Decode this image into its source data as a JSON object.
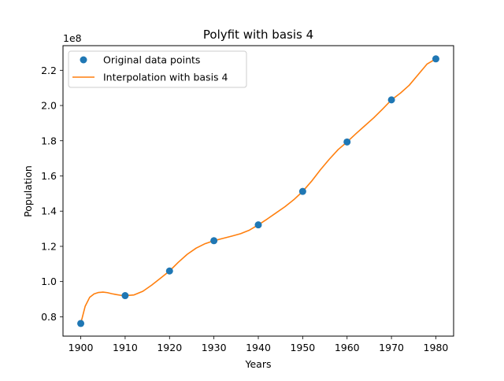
{
  "chart_data": {
    "type": "line",
    "title": "Polyfit with basis 4",
    "xlabel": "Years",
    "ylabel": "Population",
    "y_offset_label": "1e8",
    "xlim": [
      1896,
      1984
    ],
    "ylim": [
      0.69,
      2.34
    ],
    "xticks": [
      1900,
      1910,
      1920,
      1930,
      1940,
      1950,
      1960,
      1970,
      1980
    ],
    "xtick_labels": [
      "1900",
      "1910",
      "1920",
      "1930",
      "1940",
      "1950",
      "1960",
      "1970",
      "1980"
    ],
    "yticks": [
      0.8,
      1.0,
      1.2,
      1.4,
      1.6,
      1.8,
      2.0,
      2.2
    ],
    "ytick_labels": [
      "0.8",
      "1.0",
      "1.2",
      "1.4",
      "1.6",
      "1.8",
      "2.0",
      "2.2"
    ],
    "legend_position": "upper-left",
    "grid": false,
    "colors": {
      "points": "#1f77b4",
      "curve": "#ff7f0e"
    },
    "series": [
      {
        "name": "Original data points",
        "kind": "scatter",
        "x": [
          1900,
          1910,
          1920,
          1930,
          1940,
          1950,
          1960,
          1970,
          1980
        ],
        "y": [
          0.762,
          0.92,
          1.06,
          1.232,
          1.322,
          1.512,
          1.793,
          2.032,
          2.265
        ]
      },
      {
        "name": "Interpolation with basis 4",
        "kind": "line",
        "x": [
          1900,
          1901,
          1902,
          1903,
          1904,
          1905,
          1906,
          1907,
          1908,
          1909,
          1910,
          1912,
          1914,
          1916,
          1918,
          1920,
          1922,
          1924,
          1926,
          1928,
          1930,
          1932,
          1934,
          1936,
          1938,
          1940,
          1942,
          1944,
          1946,
          1948,
          1950,
          1952,
          1954,
          1956,
          1958,
          1960,
          1962,
          1964,
          1966,
          1968,
          1970,
          1972,
          1974,
          1976,
          1978,
          1980
        ],
        "y": [
          0.762,
          0.86,
          0.91,
          0.93,
          0.938,
          0.94,
          0.937,
          0.931,
          0.926,
          0.922,
          0.92,
          0.924,
          0.945,
          0.98,
          1.02,
          1.06,
          1.11,
          1.155,
          1.19,
          1.215,
          1.232,
          1.245,
          1.258,
          1.272,
          1.292,
          1.322,
          1.355,
          1.39,
          1.425,
          1.465,
          1.512,
          1.57,
          1.635,
          1.695,
          1.75,
          1.793,
          1.84,
          1.885,
          1.93,
          1.98,
          2.032,
          2.07,
          2.115,
          2.175,
          2.235,
          2.265
        ]
      }
    ]
  }
}
